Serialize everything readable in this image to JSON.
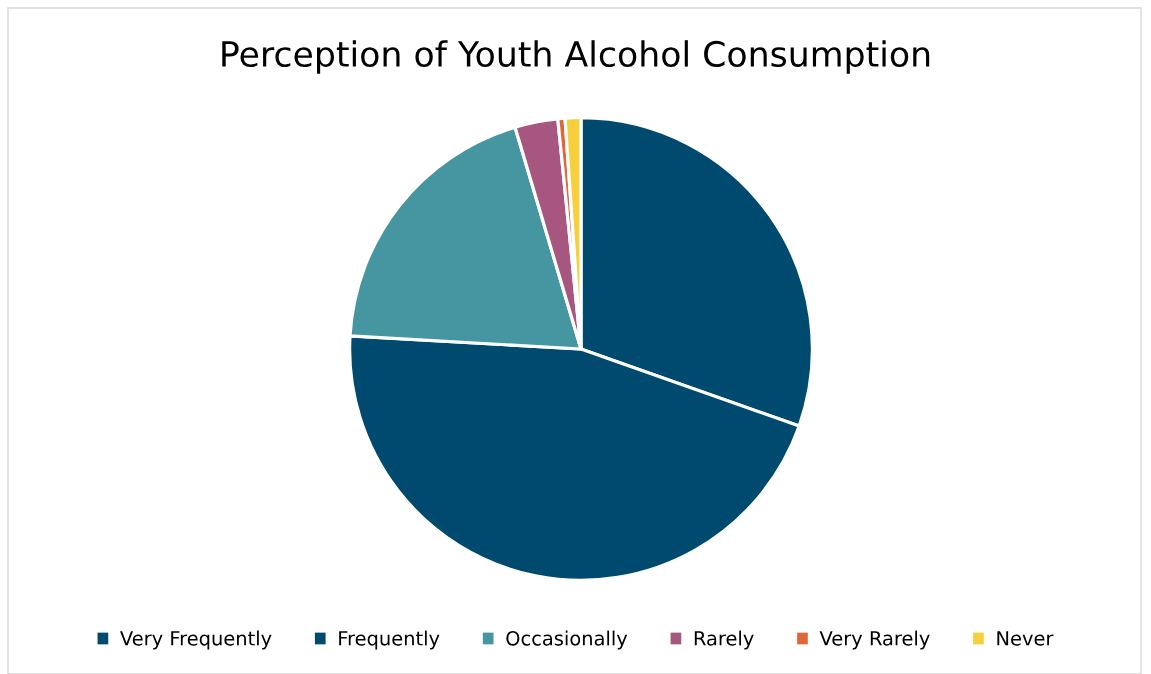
{
  "chart_data": {
    "type": "pie",
    "title": "Perception of Youth Alcohol Consumption",
    "categories": [
      "Very Frequently",
      "Frequently",
      "Occasionally",
      "Rarely",
      "Very Rarely",
      "Never"
    ],
    "values": [
      30.4,
      45.5,
      19.5,
      3.0,
      0.5,
      1.1
    ],
    "colors": [
      "#004a70",
      "#004a70",
      "#4596a0",
      "#a7567f",
      "#e0673b",
      "#f6cf3d"
    ],
    "legend": "bottom"
  }
}
